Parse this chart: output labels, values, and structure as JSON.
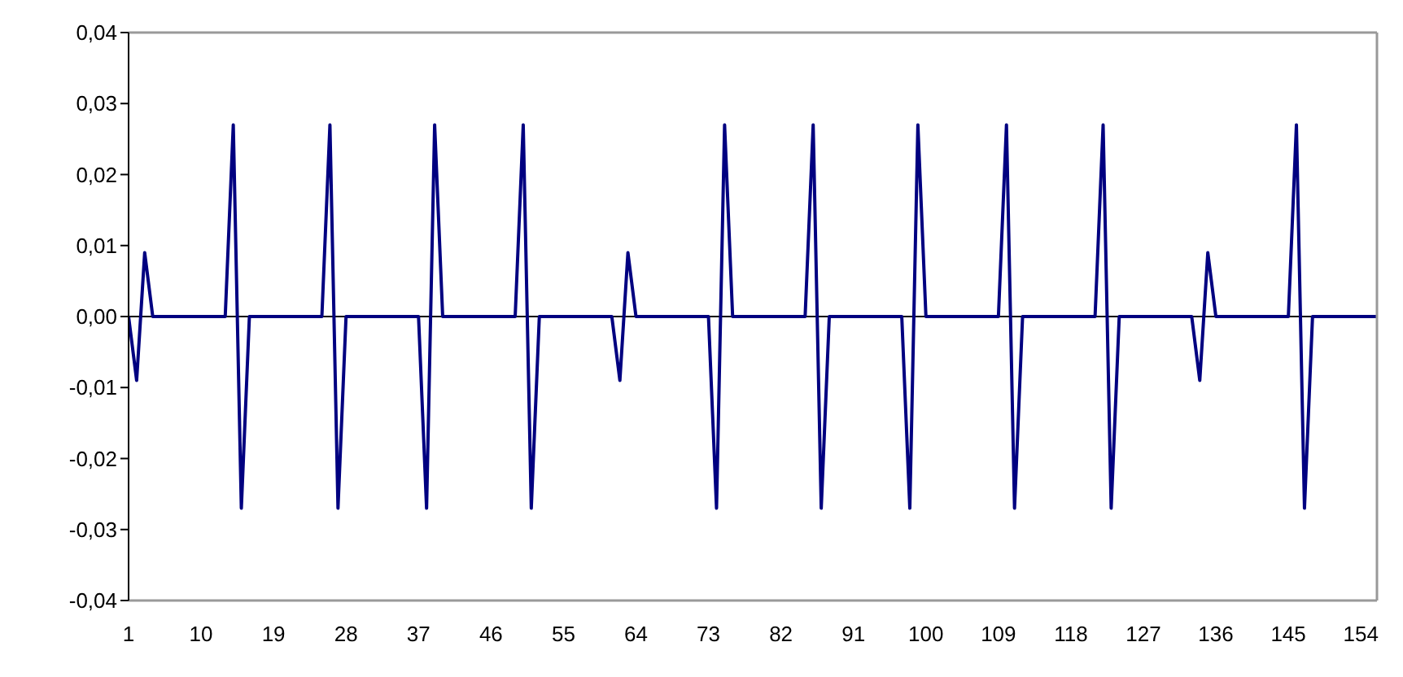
{
  "chart_data": {
    "type": "line",
    "categories": [
      "1",
      null,
      null,
      null,
      null,
      null,
      null,
      null,
      null,
      "10",
      null,
      null,
      null,
      null,
      null,
      null,
      null,
      null,
      "19",
      null,
      null,
      null,
      null,
      null,
      null,
      null,
      null,
      "28",
      null,
      null,
      null,
      null,
      null,
      null,
      null,
      null,
      "37",
      null,
      null,
      null,
      null,
      null,
      null,
      null,
      null,
      "46",
      null,
      null,
      null,
      null,
      null,
      null,
      null,
      null,
      "55",
      null,
      null,
      null,
      null,
      null,
      null,
      null,
      null,
      "64",
      null,
      null,
      null,
      null,
      null,
      null,
      null,
      null,
      "73",
      null,
      null,
      null,
      null,
      null,
      null,
      null,
      null,
      "82",
      null,
      null,
      null,
      null,
      null,
      null,
      null,
      null,
      "91",
      null,
      null,
      null,
      null,
      null,
      null,
      null,
      null,
      "100",
      null,
      null,
      null,
      null,
      null,
      null,
      null,
      null,
      "109",
      null,
      null,
      null,
      null,
      null,
      null,
      null,
      null,
      "118",
      null,
      null,
      null,
      null,
      null,
      null,
      null,
      null,
      "127",
      null,
      null,
      null,
      null,
      null,
      null,
      null,
      null,
      "136",
      null,
      null,
      null,
      null,
      null,
      null,
      null,
      null,
      "145",
      null,
      null,
      null,
      null,
      null,
      null,
      null,
      null,
      "154",
      null,
      null
    ],
    "series": [
      {
        "color": "#000080",
        "values": [
          0,
          -0.009,
          0.009,
          0,
          0,
          0,
          0,
          0,
          0,
          0,
          0,
          0,
          0,
          0.027,
          -0.027,
          0,
          0,
          0,
          0,
          0,
          0,
          0,
          0,
          0,
          0,
          0.027,
          -0.027,
          0,
          0,
          0,
          0,
          0,
          0,
          0,
          0,
          0,
          0,
          -0.027,
          0.027,
          0,
          0,
          0,
          0,
          0,
          0,
          0,
          0,
          0,
          0,
          0.027,
          -0.027,
          0,
          0,
          0,
          0,
          0,
          0,
          0,
          0,
          0,
          0,
          -0.009,
          0.009,
          0,
          0,
          0,
          0,
          0,
          0,
          0,
          0,
          0,
          0,
          -0.027,
          0.027,
          0,
          0,
          0,
          0,
          0,
          0,
          0,
          0,
          0,
          0,
          0.027,
          -0.027,
          0,
          0,
          0,
          0,
          0,
          0,
          0,
          0,
          0,
          0,
          -0.027,
          0.027,
          0,
          0,
          0,
          0,
          0,
          0,
          0,
          0,
          0,
          0,
          0.027,
          -0.027,
          0,
          0,
          0,
          0,
          0,
          0,
          0,
          0,
          0,
          0,
          0.027,
          -0.027,
          0,
          0,
          0,
          0,
          0,
          0,
          0,
          0,
          0,
          0,
          -0.009,
          0.009,
          0,
          0,
          0,
          0,
          0,
          0,
          0,
          0,
          0,
          0,
          0.027,
          -0.027,
          0,
          0,
          0,
          0,
          0,
          0,
          0,
          0,
          0
        ]
      }
    ],
    "ylim": [
      -0.04,
      0.04
    ],
    "yticks": [
      {
        "value": -0.04,
        "label": "-0,04"
      },
      {
        "value": -0.03,
        "label": "-0,03"
      },
      {
        "value": -0.02,
        "label": "-0,02"
      },
      {
        "value": -0.01,
        "label": "-0,01"
      },
      {
        "value": 0,
        "label": "0,00"
      },
      {
        "value": 0.01,
        "label": "0,01"
      },
      {
        "value": 0.02,
        "label": "0,02"
      },
      {
        "value": 0.03,
        "label": "0,03"
      },
      {
        "value": 0.04,
        "label": "0,04"
      }
    ],
    "ref_lines": [
      {
        "axis": "y",
        "value": 0,
        "color": "#000000"
      }
    ],
    "grid": false,
    "marker": "none",
    "line_style": "solid"
  }
}
